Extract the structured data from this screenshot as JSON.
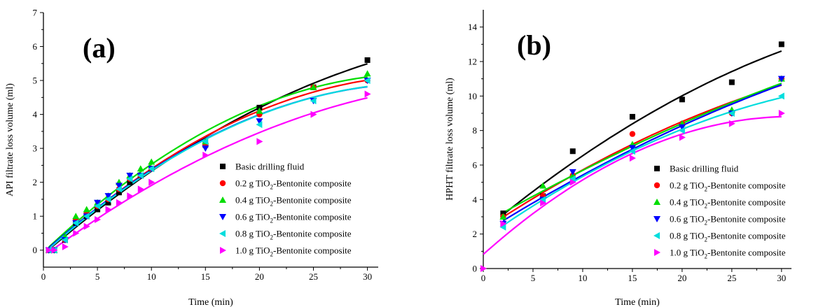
{
  "chart_data": [
    {
      "type": "scatter",
      "panel_label": "(a)",
      "xlabel": "Time (min)",
      "ylabel": "API filtrate loss volume (ml)",
      "xlim": [
        0,
        31
      ],
      "ylim": [
        -0.5,
        7
      ],
      "xticks": [
        0,
        5,
        10,
        15,
        20,
        25,
        30
      ],
      "yticks": [
        0,
        1,
        2,
        3,
        4,
        5,
        6,
        7
      ],
      "legend_position": "bottom-right",
      "trend_lines": true,
      "series": [
        {
          "name": "Basic drilling fluid",
          "marker": "square",
          "color": "#000000",
          "x": [
            0.5,
            1,
            2,
            3,
            4,
            5,
            6,
            7,
            8,
            9,
            10,
            15,
            20,
            25,
            30
          ],
          "y": [
            0,
            0,
            0.3,
            0.8,
            1.0,
            1.2,
            1.4,
            1.7,
            2.0,
            2.2,
            2.4,
            3.1,
            4.2,
            4.8,
            5.6
          ]
        },
        {
          "name": "0.2 g TiO2-Bentonite composite",
          "name_parts": {
            "prefix": "0.2 g TiO",
            "sub": "2",
            "suffix": "-Bentonite composite"
          },
          "marker": "circle",
          "color": "#ff0000",
          "x": [
            0.5,
            1,
            2,
            3,
            4,
            5,
            6,
            7,
            8,
            9,
            10,
            15,
            20,
            25,
            30
          ],
          "y": [
            0,
            0,
            0.3,
            0.9,
            1.1,
            1.3,
            1.5,
            1.8,
            2.1,
            2.2,
            2.4,
            3.1,
            4.0,
            4.8,
            5.0
          ]
        },
        {
          "name": "0.4 g TiO2-Bentonite composite",
          "name_parts": {
            "prefix": "0.4 g TiO",
            "sub": "2",
            "suffix": "-Bentonite composite"
          },
          "marker": "triangle-up",
          "color": "#00dd00",
          "x": [
            0.5,
            1,
            2,
            3,
            4,
            5,
            6,
            7,
            8,
            9,
            10,
            15,
            20,
            25,
            30
          ],
          "y": [
            0,
            0,
            0.4,
            1.0,
            1.2,
            1.4,
            1.6,
            2.0,
            2.2,
            2.4,
            2.6,
            3.2,
            4.1,
            4.8,
            5.2
          ]
        },
        {
          "name": "0.6 g TiO2-Bentonite composite",
          "name_parts": {
            "prefix": "0.6 g TiO",
            "sub": "2",
            "suffix": "-Bentonite composite"
          },
          "marker": "triangle-down",
          "color": "#0000ff",
          "x": [
            0.5,
            1,
            2,
            3,
            4,
            5,
            6,
            7,
            8,
            9,
            10,
            15,
            20,
            25,
            30
          ],
          "y": [
            0,
            0,
            0.3,
            0.8,
            1.0,
            1.4,
            1.6,
            1.9,
            2.2,
            2.2,
            2.4,
            3.0,
            3.8,
            4.4,
            5.0
          ]
        },
        {
          "name": "0.8 g TiO2-Bentonite composite",
          "name_parts": {
            "prefix": "0.8 g TiO",
            "sub": "2",
            "suffix": "-Bentonite composite"
          },
          "marker": "triangle-left",
          "color": "#00dddd",
          "x": [
            0.5,
            1,
            2,
            3,
            4,
            5,
            6,
            7,
            8,
            9,
            10,
            15,
            20,
            25,
            30
          ],
          "y": [
            0,
            0,
            0.3,
            0.8,
            1.0,
            1.3,
            1.5,
            1.8,
            2.1,
            2.2,
            2.4,
            3.2,
            3.7,
            4.4,
            5.0
          ]
        },
        {
          "name": "1.0 g  TiO2-Bentonite composite",
          "name_parts": {
            "prefix": "1.0 g  TiO",
            "sub": "2",
            "suffix": "-Bentonite composite"
          },
          "marker": "triangle-right",
          "color": "#ff00ff",
          "x": [
            0.5,
            1,
            2,
            3,
            4,
            5,
            6,
            7,
            8,
            9,
            10,
            15,
            20,
            25,
            30
          ],
          "y": [
            0,
            0,
            0.1,
            0.5,
            0.7,
            0.9,
            1.2,
            1.4,
            1.6,
            1.8,
            2.0,
            2.8,
            3.2,
            4.0,
            4.6
          ]
        }
      ]
    },
    {
      "type": "scatter",
      "panel_label": "(b)",
      "xlabel": "Time (min)",
      "ylabel": "HPHT filtrate loss volume (ml)",
      "xlim": [
        0,
        31
      ],
      "ylim": [
        0,
        15
      ],
      "xticks": [
        0,
        5,
        10,
        15,
        20,
        25,
        30
      ],
      "yticks": [
        0,
        2,
        4,
        6,
        8,
        10,
        12,
        14
      ],
      "legend_position": "bottom-right",
      "trend_lines": true,
      "series": [
        {
          "name": "Basic drilling fluid",
          "marker": "square",
          "color": "#000000",
          "x": [
            2,
            6,
            9,
            15,
            20,
            25,
            30
          ],
          "y": [
            3.2,
            4.2,
            6.8,
            8.8,
            9.8,
            10.8,
            13.0
          ]
        },
        {
          "name": "0.2 g TiO2-Bentonite composite",
          "name_parts": {
            "prefix": "0.2 g TiO",
            "sub": "2",
            "suffix": "-Bentonite composite"
          },
          "marker": "circle",
          "color": "#ff0000",
          "x": [
            2,
            6,
            9,
            15,
            20,
            25,
            30
          ],
          "y": [
            3.0,
            4.2,
            5.4,
            7.8,
            8.4,
            9.0,
            11.0
          ]
        },
        {
          "name": "0.4 g TiO2-Bentonite composite",
          "name_parts": {
            "prefix": "0.4 g TiO",
            "sub": "2",
            "suffix": "-Bentonite composite"
          },
          "marker": "triangle-up",
          "color": "#00dd00",
          "x": [
            2,
            6,
            9,
            15,
            20,
            25,
            30
          ],
          "y": [
            3.0,
            4.8,
            5.4,
            7.2,
            8.4,
            9.2,
            11.0
          ]
        },
        {
          "name": "0.6 g TiO2-Bentonite composite",
          "name_parts": {
            "prefix": "0.6 g TiO",
            "sub": "2",
            "suffix": "-Bentonite composite"
          },
          "marker": "triangle-down",
          "color": "#0000ff",
          "x": [
            2,
            6,
            9,
            15,
            20,
            25,
            30
          ],
          "y": [
            2.6,
            4.0,
            5.6,
            7.0,
            8.2,
            9.0,
            11.0
          ]
        },
        {
          "name": "0.8 g TiO2-Bentonite composite",
          "name_parts": {
            "prefix": "0.8 g TiO",
            "sub": "2",
            "suffix": "-Bentonite composite"
          },
          "marker": "triangle-left",
          "color": "#00dddd",
          "x": [
            2,
            6,
            9,
            15,
            20,
            25,
            30
          ],
          "y": [
            2.4,
            4.0,
            5.2,
            6.8,
            8.0,
            9.0,
            10.0
          ]
        },
        {
          "name": "1.0 g  TiO2-Bentonite composite",
          "name_parts": {
            "prefix": "1.0 g  TiO",
            "sub": "2",
            "suffix": "-Bentonite composite"
          },
          "marker": "triangle-right",
          "color": "#ff00ff",
          "x": [
            0,
            2,
            6,
            9,
            15,
            20,
            25,
            30
          ],
          "y": [
            0,
            2.6,
            3.8,
            5.0,
            6.4,
            7.6,
            8.4,
            9.0
          ]
        }
      ]
    }
  ]
}
